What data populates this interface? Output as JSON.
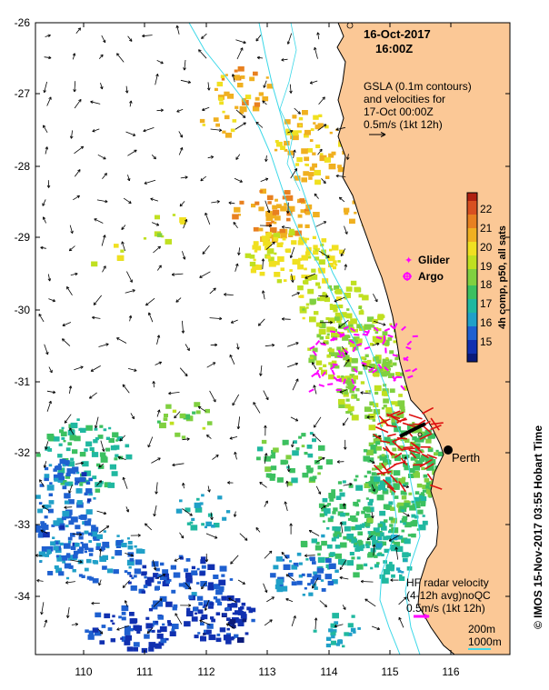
{
  "map": {
    "date": "16-Oct-2017",
    "time": "16:00Z",
    "gsla_lines": [
      "GSLA (0.1m contours)",
      "and velocities for",
      "17-Oct 00:00Z",
      "0.5m/s (1kt 12h)"
    ],
    "radar_lines": [
      "HF radar velocity",
      "(4-12h avg)noQC",
      "0.5m/s (1kt 12h)"
    ],
    "depth_200": "200m",
    "depth_1000": "1000m",
    "city": "Perth",
    "legend_glider": "Glider",
    "legend_argo": "Argo",
    "colorbar_title": "4h comp, p50, all sats",
    "colorbar_ticks": [
      "15",
      "16",
      "17",
      "18",
      "19",
      "20",
      "21",
      "22"
    ],
    "credit": "© IMOS 15-Nov-2017 03:55 Hobart Time",
    "lat_labels": [
      "-26",
      "-27",
      "-28",
      "-29",
      "-30",
      "-31",
      "-32",
      "-33",
      "-34"
    ],
    "lon_labels": [
      "110",
      "111",
      "112",
      "113",
      "114",
      "115",
      "116"
    ],
    "colors": {
      "land": "#fbc896",
      "coast": "#000000",
      "isobath": "#3cd8e8",
      "glider": "#ff00ff",
      "radar_arrow": "#dd1010"
    }
  }
}
